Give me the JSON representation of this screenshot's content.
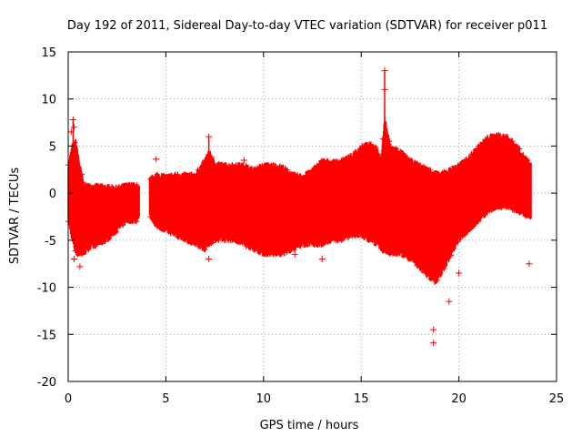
{
  "chart_data": {
    "type": "scatter",
    "title": "Day 192 of 2011, Sidereal Day-to-day VTEC variation (SDTVAR) for receiver p011",
    "xlabel": "GPS time / hours",
    "ylabel": "SDTVAR / TECUs",
    "xlim": [
      0,
      25
    ],
    "ylim": [
      -20,
      15
    ],
    "grid": true,
    "marker": "+",
    "color": "#ff0000",
    "x_ticks": [
      0,
      5,
      10,
      15,
      20,
      25
    ],
    "y_ticks": [
      -20,
      -15,
      -10,
      -5,
      0,
      5,
      10,
      15
    ],
    "x_tick_labels": [
      "0",
      "5",
      "10",
      "15",
      "20",
      "25"
    ],
    "y_tick_labels": [
      "-20",
      "-15",
      "-10",
      "-5",
      "0",
      "5",
      "10",
      "15"
    ],
    "envelope": {
      "description": "Dense band of SDTVAR values (upper and lower bounds per hour)",
      "x": [
        0.0,
        0.2,
        0.4,
        0.6,
        0.8,
        1.0,
        1.5,
        2.0,
        2.5,
        3.0,
        3.5,
        3.6,
        4.2,
        4.5,
        5.0,
        5.5,
        6.0,
        6.5,
        7.0,
        7.2,
        7.5,
        8.0,
        8.5,
        9.0,
        9.5,
        10.0,
        10.5,
        11.0,
        11.5,
        12.0,
        12.5,
        13.0,
        13.5,
        14.0,
        14.5,
        15.0,
        15.3,
        15.5,
        15.8,
        16.0,
        16.2,
        16.5,
        17.0,
        17.5,
        18.0,
        18.5,
        18.8,
        19.0,
        19.5,
        20.0,
        20.5,
        21.0,
        21.5,
        22.0,
        22.5,
        23.0,
        23.5,
        23.7
      ],
      "upper": [
        3.0,
        5.0,
        5.5,
        3.0,
        1.0,
        0.8,
        0.8,
        0.7,
        0.6,
        0.9,
        0.9,
        0.5,
        1.5,
        2.0,
        1.8,
        2.0,
        2.0,
        2.0,
        3.5,
        4.5,
        3.2,
        3.0,
        3.0,
        3.0,
        2.5,
        3.0,
        3.0,
        2.8,
        2.0,
        1.8,
        2.5,
        3.5,
        3.3,
        3.5,
        4.0,
        5.0,
        5.2,
        5.2,
        4.8,
        3.5,
        8.0,
        5.0,
        4.5,
        3.5,
        3.0,
        2.5,
        2.2,
        2.0,
        2.5,
        3.0,
        3.8,
        5.0,
        6.0,
        6.2,
        6.0,
        5.0,
        3.5,
        3.0
      ],
      "lower": [
        -3.0,
        -5.0,
        -6.5,
        -6.5,
        -6.5,
        -6.0,
        -5.5,
        -5.0,
        -4.0,
        -3.0,
        -3.0,
        -2.5,
        -2.5,
        -3.5,
        -4.0,
        -4.5,
        -5.0,
        -5.5,
        -6.0,
        -5.5,
        -5.0,
        -5.0,
        -5.0,
        -5.5,
        -6.0,
        -6.5,
        -6.5,
        -6.5,
        -6.0,
        -5.5,
        -5.5,
        -5.5,
        -5.0,
        -5.0,
        -4.5,
        -4.5,
        -5.0,
        -5.0,
        -5.5,
        -6.0,
        -6.2,
        -6.5,
        -6.5,
        -7.0,
        -8.0,
        -9.0,
        -9.5,
        -9.0,
        -7.0,
        -5.0,
        -4.0,
        -3.0,
        -2.0,
        -1.5,
        -1.5,
        -2.0,
        -2.5,
        -3.0
      ]
    },
    "points": [
      {
        "x": 0.15,
        "y": 6.5
      },
      {
        "x": 0.25,
        "y": 7.8
      },
      {
        "x": 0.3,
        "y": 7.0
      },
      {
        "x": 0.3,
        "y": -7.0
      },
      {
        "x": 0.6,
        "y": -7.8
      },
      {
        "x": 4.5,
        "y": 3.6
      },
      {
        "x": 7.2,
        "y": 6.0
      },
      {
        "x": 7.2,
        "y": -7.0
      },
      {
        "x": 9.0,
        "y": 3.5
      },
      {
        "x": 11.6,
        "y": -6.5
      },
      {
        "x": 13.0,
        "y": -7.0
      },
      {
        "x": 16.2,
        "y": 13.0
      },
      {
        "x": 16.2,
        "y": 11.0
      },
      {
        "x": 18.7,
        "y": -14.5
      },
      {
        "x": 18.7,
        "y": -15.9
      },
      {
        "x": 19.0,
        "y": -8.5
      },
      {
        "x": 19.5,
        "y": -11.5
      },
      {
        "x": 20.0,
        "y": -8.5
      },
      {
        "x": 23.5,
        "y": 3.5
      },
      {
        "x": 23.6,
        "y": -7.5
      }
    ]
  }
}
